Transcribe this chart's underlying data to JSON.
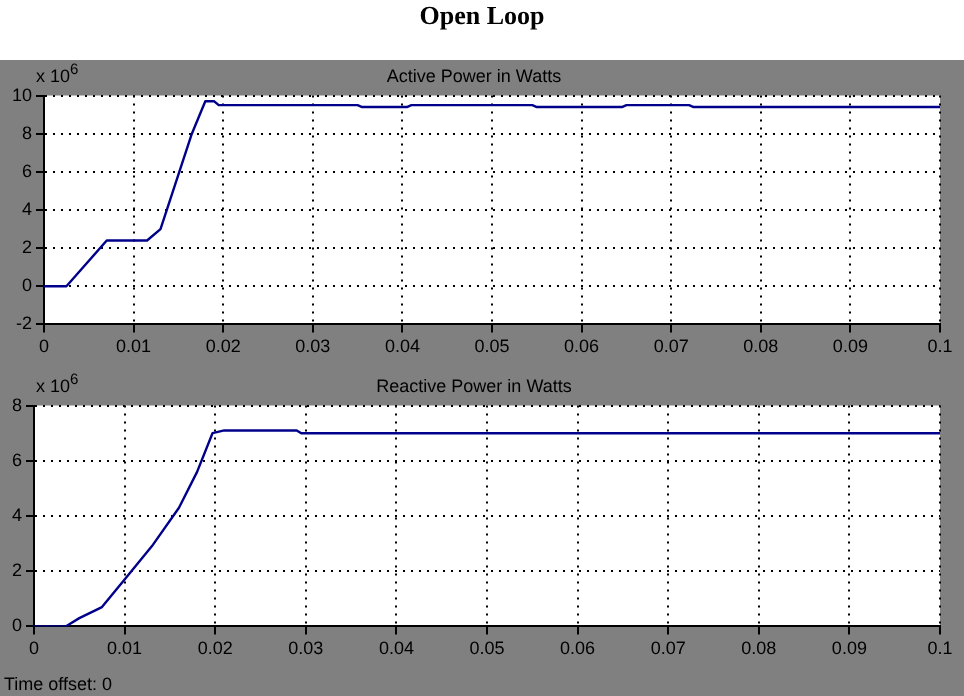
{
  "chart_data": [
    {
      "type": "line",
      "title": "Open Loop",
      "subtitle": "Active Power in Watts",
      "ylabel": "x 10$^{6}$",
      "xlim": [
        0,
        0.1
      ],
      "xticks": [
        0,
        0.01,
        0.02,
        0.03,
        0.04,
        0.05,
        0.06,
        0.07,
        0.08,
        0.09,
        0.1
      ],
      "ylim": [
        -2,
        10
      ],
      "yticks": [
        -2,
        0,
        2,
        4,
        6,
        8,
        10
      ],
      "grid": true,
      "marker": "none",
      "line_style": "solid",
      "x": [
        0,
        0.0025,
        0.007,
        0.0115,
        0.013,
        0.0165,
        0.018,
        0.019,
        0.0195,
        0.035,
        0.0355,
        0.0405,
        0.041,
        0.0545,
        0.055,
        0.0645,
        0.065,
        0.072,
        0.0725,
        0.1
      ],
      "series": [
        {
          "color": "#00008b",
          "values": [
            0,
            0,
            2.4,
            2.4,
            3,
            8,
            9.7,
            9.7,
            9.5,
            9.5,
            9.4,
            9.4,
            9.5,
            9.5,
            9.4,
            9.4,
            9.5,
            9.5,
            9.4,
            9.4
          ]
        }
      ]
    },
    {
      "type": "line",
      "title": "Reactive Power in Watts",
      "ylabel": "x 10$^{6}$",
      "xlim": [
        0,
        0.1
      ],
      "xticks": [
        0,
        0.01,
        0.02,
        0.03,
        0.04,
        0.05,
        0.06,
        0.07,
        0.08,
        0.09,
        0.1
      ],
      "ylim": [
        0,
        8
      ],
      "yticks": [
        0,
        2,
        4,
        6,
        8
      ],
      "grid": true,
      "marker": "none",
      "line_style": "solid",
      "annotations": [
        "Time offset: 0"
      ],
      "x": [
        0,
        0.0035,
        0.005,
        0.0075,
        0.01,
        0.013,
        0.016,
        0.018,
        0.0197,
        0.021,
        0.029,
        0.0295,
        0.1
      ],
      "series": [
        {
          "color": "#00008b",
          "values": [
            0,
            0,
            0.3,
            0.7,
            1.7,
            2.9,
            4.3,
            5.6,
            7,
            7.1,
            7.1,
            7,
            7
          ]
        }
      ]
    }
  ]
}
